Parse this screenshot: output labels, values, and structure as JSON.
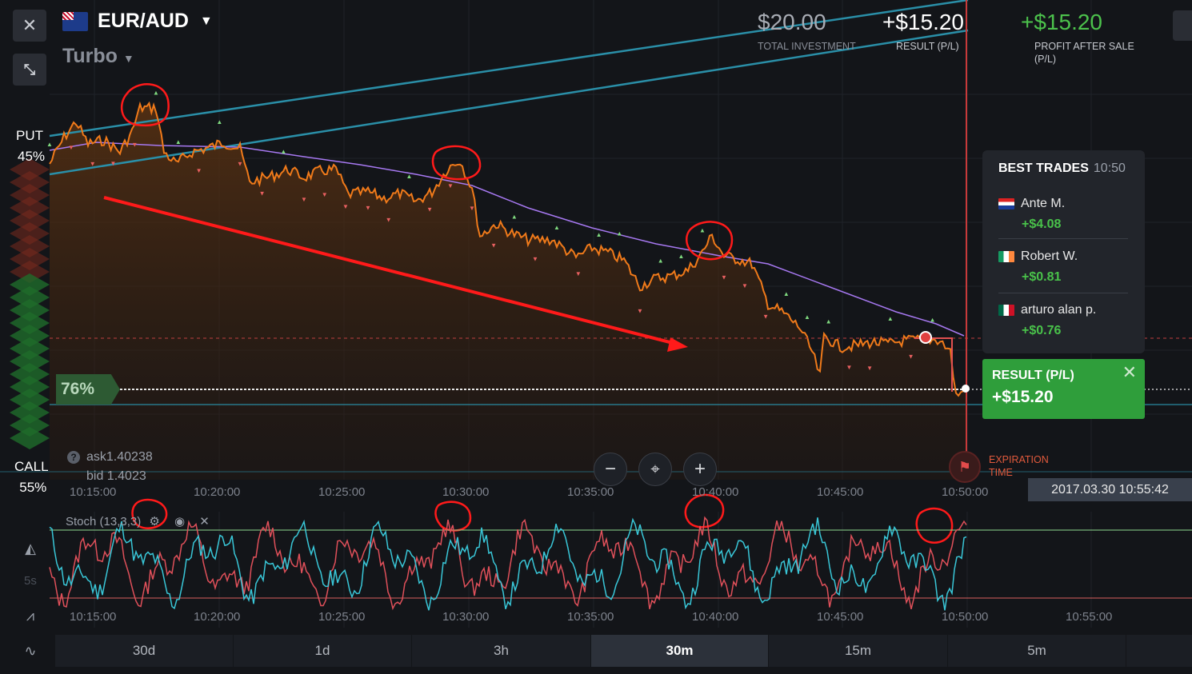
{
  "header": {
    "asset": "EUR/AUD",
    "mode": "Turbo",
    "total_investment": {
      "value": "$20.00",
      "label": "TOTAL INVESTMENT"
    },
    "result": {
      "value": "+$15.20",
      "label": "RESULT (P/L)"
    },
    "profit_after_sale": {
      "value": "+$15.20",
      "label": "PROFIT AFTER SALE (P/L)"
    }
  },
  "sidebar": {
    "put_label": "PUT",
    "put_pct": "45%",
    "call_label": "CALL",
    "call_pct": "55%"
  },
  "chart": {
    "payout_pct": "76%",
    "ask": "ask1.40238",
    "bid": "bid 1.4023",
    "expiration_label": "EXPIRATION TIME",
    "datetime": "2017.03.30 10:55:42",
    "time_ticks": [
      "10:15:00",
      "10:20:00",
      "10:25:00",
      "10:30:00",
      "10:35:00",
      "10:40:00",
      "10:45:00",
      "10:50:00"
    ],
    "stoch_time_ticks": [
      "10:15:00",
      "10:20:00",
      "10:25:00",
      "10:30:00",
      "10:35:00",
      "10:40:00",
      "10:45:00",
      "10:50:00",
      "10:55:00"
    ],
    "colors": {
      "price": "#f07a1a",
      "ma": "#a678f0",
      "channel": "#2a8fa8",
      "stoch_k": "#39c7d8",
      "stoch_d": "#e0505a",
      "annotation": "#ff1a1a"
    }
  },
  "best_trades": {
    "title": "BEST TRADES",
    "time": "10:50",
    "items": [
      {
        "name": "Ante M.",
        "amount": "+$4.08"
      },
      {
        "name": "Robert W.",
        "amount": "+$0.81"
      },
      {
        "name": "arturo alan p.",
        "amount": "+$0.76"
      }
    ]
  },
  "result_panel": {
    "label": "RESULT (P/L)",
    "value": "+$15.20"
  },
  "indicator": {
    "label": "Stoch (13,3,3)",
    "side_label": "5s"
  },
  "timeframes": [
    "30d",
    "1d",
    "3h",
    "30m",
    "15m",
    "5m"
  ],
  "active_timeframe": "30m"
}
